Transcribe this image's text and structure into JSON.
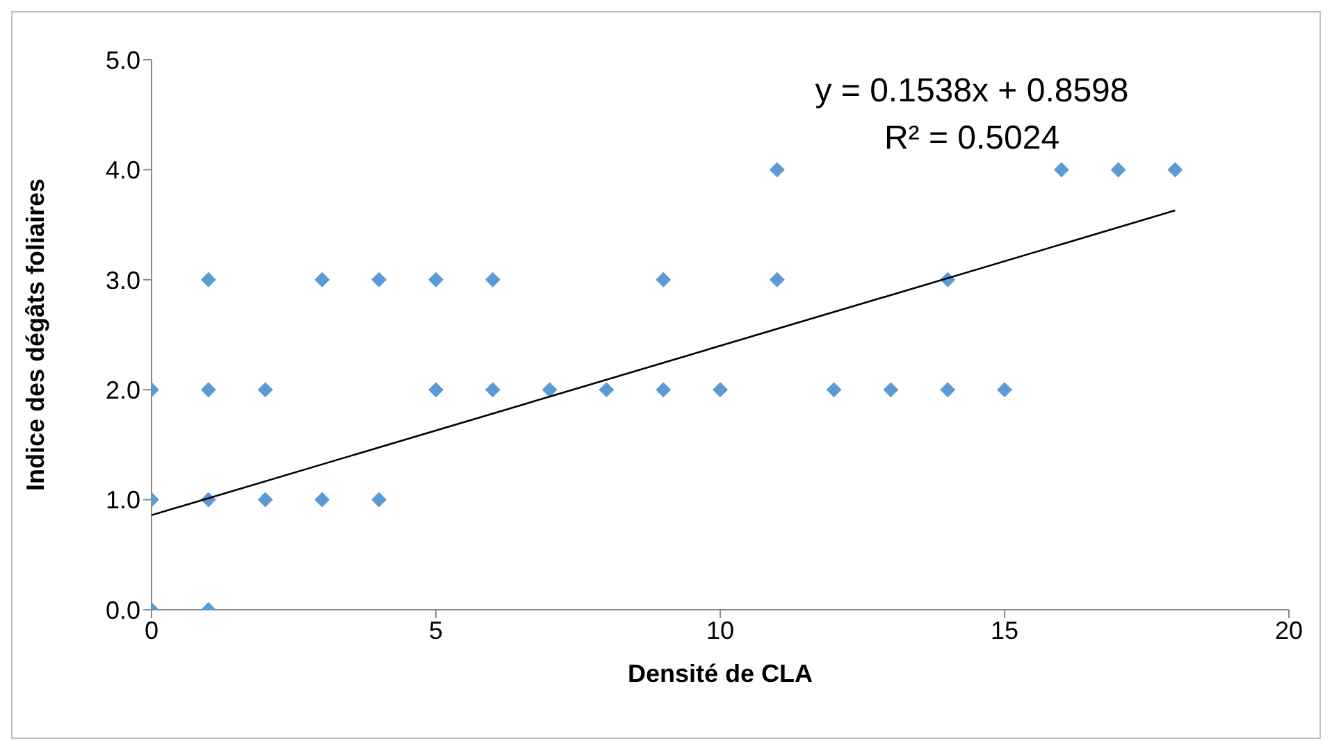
{
  "chart_data": {
    "type": "scatter",
    "xlabel": "Densité de CLA",
    "ylabel": "Indice des dégâts foliaires",
    "xlim": [
      0,
      20
    ],
    "xticks": [
      0,
      5,
      10,
      15,
      20
    ],
    "ylim": [
      0,
      5
    ],
    "yticks": [
      {
        "value": 0,
        "label": "0.0"
      },
      {
        "value": 1,
        "label": "1.0"
      },
      {
        "value": 2,
        "label": "2.0"
      },
      {
        "value": 3,
        "label": "3.0"
      },
      {
        "value": 4,
        "label": "4.0"
      },
      {
        "value": 5,
        "label": "5.0"
      }
    ],
    "annotations": [
      "y = 0.1538x + 0.8598",
      "R² = 0.5024"
    ],
    "series": [
      {
        "color": "#5b9bd5",
        "marker": "diamond",
        "x": [
          0,
          0,
          0,
          1,
          1,
          1,
          1,
          2,
          2,
          3,
          3,
          4,
          4,
          5,
          5,
          6,
          6,
          7,
          8,
          9,
          9,
          10,
          11,
          11,
          12,
          13,
          14,
          14,
          15,
          16,
          17,
          18
        ],
        "values": [
          0,
          1,
          2,
          0,
          1,
          2,
          3,
          1,
          2,
          1,
          3,
          1,
          3,
          2,
          3,
          2,
          3,
          2,
          2,
          2,
          3,
          2,
          3,
          4,
          2,
          2,
          2,
          3,
          2,
          4,
          4,
          4
        ]
      },
      {
        "type": "line",
        "color": "#000000",
        "marker": "none",
        "line_style": "solid",
        "x": [
          0,
          18
        ],
        "values": [
          0.86,
          3.63
        ]
      }
    ]
  }
}
